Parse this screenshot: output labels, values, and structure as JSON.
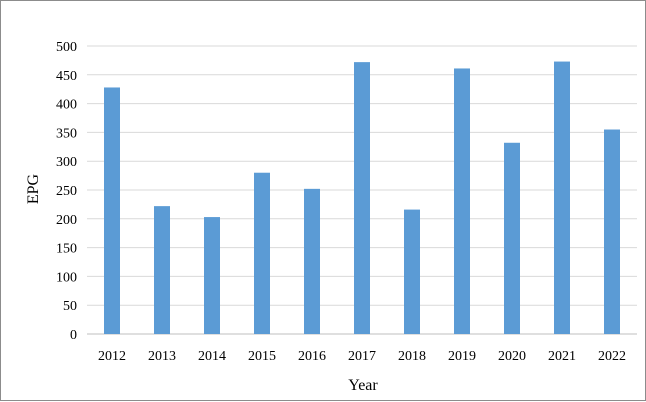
{
  "chart_data": {
    "type": "bar",
    "categories": [
      "2012",
      "2013",
      "2014",
      "2015",
      "2016",
      "2017",
      "2018",
      "2019",
      "2020",
      "2021",
      "2022"
    ],
    "values": [
      428,
      222,
      203,
      280,
      252,
      472,
      216,
      461,
      332,
      473,
      355
    ],
    "xlabel": "Year",
    "ylabel": "EPG",
    "ylim": [
      0,
      500
    ],
    "yticks": [
      "0",
      "50",
      "100",
      "150",
      "200",
      "250",
      "300",
      "350",
      "400",
      "450",
      "500"
    ],
    "grid": true,
    "bar_color": "#5b9bd5",
    "grid_color": "#d9d9d9"
  }
}
